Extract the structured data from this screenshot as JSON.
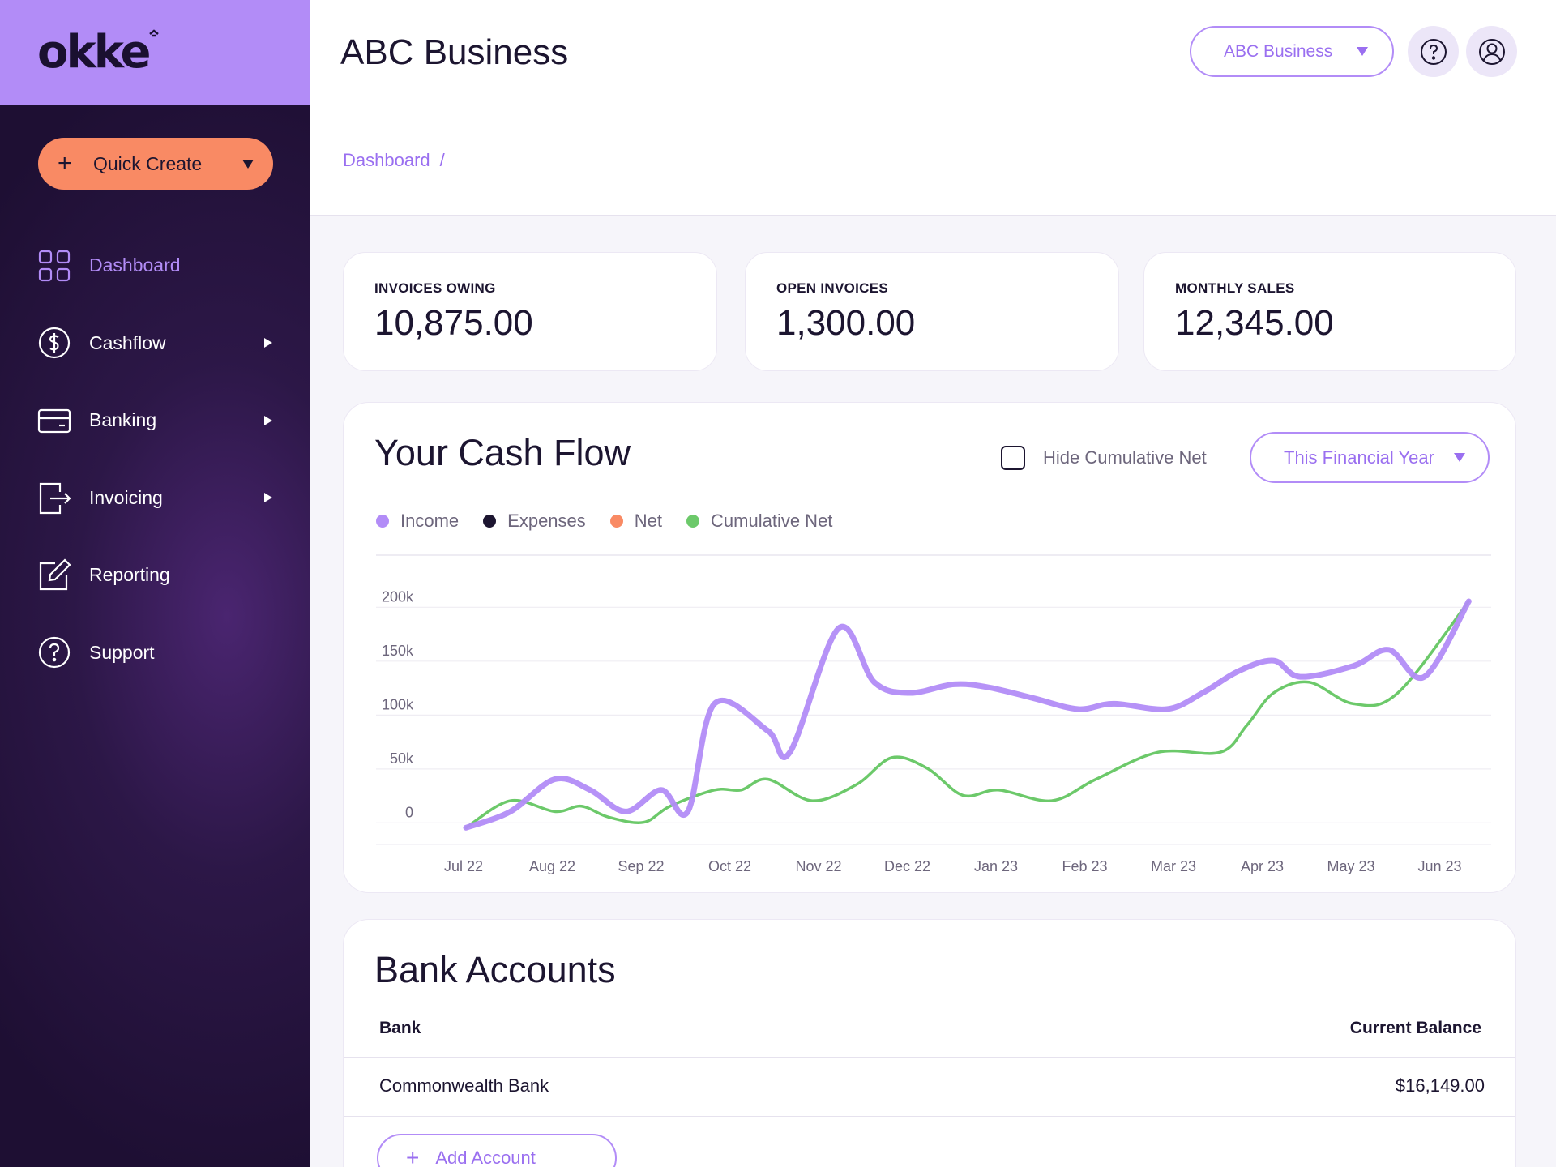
{
  "app": {
    "logo_text": "okke",
    "title": "ABC Business"
  },
  "header": {
    "business_select": "ABC Business",
    "help_icon": "question-circle-icon",
    "profile_icon": "user-circle-icon"
  },
  "sidebar": {
    "quick_create": "Quick Create",
    "items": [
      {
        "label": "Dashboard",
        "icon": "grid-icon",
        "active": true,
        "submenu": false
      },
      {
        "label": "Cashflow",
        "icon": "dollar-circle-icon",
        "active": false,
        "submenu": true
      },
      {
        "label": "Banking",
        "icon": "card-icon",
        "active": false,
        "submenu": true
      },
      {
        "label": "Invoicing",
        "icon": "invoice-export-icon",
        "active": false,
        "submenu": true
      },
      {
        "label": "Reporting",
        "icon": "edit-square-icon",
        "active": false,
        "submenu": false
      },
      {
        "label": "Support",
        "icon": "question-circle-icon",
        "active": false,
        "submenu": false
      }
    ]
  },
  "breadcrumb": {
    "current": "Dashboard",
    "separator": "/"
  },
  "stats": [
    {
      "label": "INVOICES OWING",
      "value": "10,875.00"
    },
    {
      "label": "OPEN INVOICES",
      "value": "1,300.00"
    },
    {
      "label": "MONTHLY SALES",
      "value": "12,345.00"
    }
  ],
  "cashflow": {
    "title": "Your Cash Flow",
    "hide_cumulative_label": "Hide Cumulative Net",
    "period_select": "This Financial Year",
    "legend": [
      {
        "label": "Income",
        "color": "#b28cf7"
      },
      {
        "label": "Expenses",
        "color": "#1c1530"
      },
      {
        "label": "Net",
        "color": "#f98a64"
      },
      {
        "label": "Cumulative Net",
        "color": "#6cc96a"
      }
    ]
  },
  "chart_data": {
    "type": "line",
    "categories": [
      "Jul 22",
      "Aug 22",
      "Sep 22",
      "Oct 22",
      "Nov 22",
      "Dec 22",
      "Jan 23",
      "Feb 23",
      "Mar 23",
      "Apr 23",
      "May 23",
      "Jun 23"
    ],
    "y_ticks": [
      "0",
      "50k",
      "100k",
      "150k",
      "200k"
    ],
    "ylim": [
      -20000,
      210000
    ],
    "series": [
      {
        "name": "Income",
        "color": "#b28cf7",
        "x": [
          0,
          0.5,
          1,
          1.4,
          1.8,
          2.2,
          2.5,
          2.8,
          3.4,
          3.65,
          4.2,
          4.6,
          5,
          5.5,
          5.9,
          6.4,
          6.9,
          7.3,
          7.9,
          8.3,
          8.7,
          9.1,
          9.4,
          10,
          10.4,
          10.8,
          11.3
        ],
        "y": [
          -15000,
          0,
          30000,
          20000,
          0,
          20000,
          0,
          100000,
          75000,
          55000,
          170000,
          120000,
          110000,
          118000,
          115000,
          105000,
          95000,
          100000,
          95000,
          110000,
          130000,
          140000,
          125000,
          135000,
          150000,
          125000,
          195000
        ]
      },
      {
        "name": "Cumulative Net",
        "color": "#6cc96a",
        "x": [
          0,
          0.5,
          1,
          1.3,
          1.6,
          2,
          2.3,
          2.8,
          3.1,
          3.4,
          3.9,
          4.4,
          4.8,
          5.2,
          5.6,
          6,
          6.6,
          7.1,
          7.8,
          8.5,
          8.8,
          9.1,
          9.5,
          10,
          10.5,
          11.3
        ],
        "y": [
          -15000,
          10000,
          0,
          5000,
          -5000,
          -10000,
          5000,
          20000,
          20000,
          30000,
          10000,
          25000,
          50000,
          40000,
          15000,
          20000,
          10000,
          30000,
          55000,
          55000,
          80000,
          110000,
          120000,
          100000,
          110000,
          195000
        ]
      }
    ]
  },
  "bank_accounts": {
    "title": "Bank Accounts",
    "col_bank": "Bank",
    "col_balance": "Current Balance",
    "rows": [
      {
        "bank": "Commonwealth Bank",
        "balance": "$16,149.00"
      }
    ],
    "add_label": "Add Account"
  }
}
